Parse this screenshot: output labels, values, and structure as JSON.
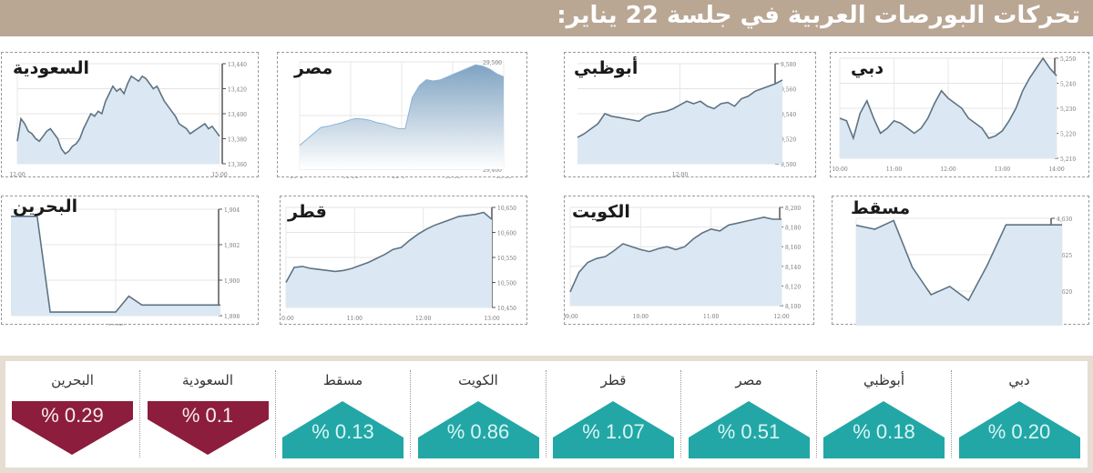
{
  "header": {
    "title": "تحركات البورصات العربية في جلسة 22 يناير:"
  },
  "colors": {
    "header_bg": "#b9a794",
    "up": "#22a7a6",
    "down": "#8c1d3d",
    "line": "#5e7383",
    "fill": "#dbe8f4",
    "frame": "#e6ddd3"
  },
  "summary": [
    {
      "name": "البحرين",
      "value": "% 0.29",
      "direction": "down"
    },
    {
      "name": "السعودية",
      "value": "% 0.1",
      "direction": "down"
    },
    {
      "name": "مسقط",
      "value": "% 0.13",
      "direction": "up"
    },
    {
      "name": "الكويت",
      "value": "% 0.86",
      "direction": "up"
    },
    {
      "name": "قطر",
      "value": "% 1.07",
      "direction": "up"
    },
    {
      "name": "مصر",
      "value": "% 0.51",
      "direction": "up"
    },
    {
      "name": "أبوظبي",
      "value": "% 0.18",
      "direction": "up"
    },
    {
      "name": "دبي",
      "value": "% 0.20",
      "direction": "up"
    }
  ],
  "chart_data": [
    {
      "id": "saudi",
      "title": "السعودية",
      "type": "area",
      "x_ticks": [
        "12:00",
        "15:00"
      ],
      "y_ticks": [
        "13,440",
        "13,420",
        "13,400",
        "13,380",
        "13,360"
      ],
      "ylim": [
        13360,
        13440
      ],
      "values": [
        13378,
        13396,
        13392,
        13386,
        13384,
        13380,
        13378,
        13382,
        13386,
        13388,
        13384,
        13380,
        13372,
        13368,
        13370,
        13374,
        13376,
        13380,
        13388,
        13394,
        13400,
        13398,
        13402,
        13400,
        13410,
        13416,
        13422,
        13418,
        13420,
        13416,
        13424,
        13430,
        13428,
        13426,
        13430,
        13428,
        13424,
        13420,
        13422,
        13416,
        13410,
        13406,
        13402,
        13398,
        13392,
        13390,
        13388,
        13384,
        13386,
        13388,
        13390,
        13392,
        13388,
        13390,
        13386,
        13382
      ]
    },
    {
      "id": "egypt",
      "title": "مصر",
      "type": "area",
      "x_ticks": [
        "21. Jan",
        "10:00",
        "22. Jan",
        "15:00",
        "12:00"
      ],
      "y_ticks": [
        "29,500",
        "29,450",
        "29,400"
      ],
      "ylim": [
        29380,
        29560
      ],
      "values": [
        29420,
        29430,
        29440,
        29450,
        29452,
        29455,
        29458,
        29462,
        29465,
        29464,
        29462,
        29458,
        29456,
        29452,
        29448,
        29448,
        29500,
        29520,
        29530,
        29528,
        29530,
        29535,
        29540,
        29545,
        29550,
        29555,
        29553,
        29548,
        29540,
        29535
      ]
    },
    {
      "id": "abudhabi",
      "title": "أبوظبي",
      "type": "area",
      "x_ticks": [
        "12:00"
      ],
      "y_ticks": [
        "9,580",
        "9,560",
        "9,540",
        "9,520",
        "9,500"
      ],
      "ylim": [
        9500,
        9580
      ],
      "values": [
        9521,
        9524,
        9528,
        9532,
        9540,
        9538,
        9537,
        9536,
        9535,
        9534,
        9538,
        9540,
        9541,
        9542,
        9544,
        9547,
        9550,
        9548,
        9550,
        9546,
        9544,
        9548,
        9549,
        9546,
        9552,
        9554,
        9558,
        9560,
        9562,
        9564,
        9567
      ]
    },
    {
      "id": "dubai",
      "title": "دبي",
      "type": "area",
      "x_ticks": [
        "10:00",
        "11:00",
        "12:00",
        "13:00",
        "14:00"
      ],
      "y_ticks": [
        "5,250",
        "5,240",
        "5,230",
        "5,220",
        "5,210"
      ],
      "ylim": [
        5210,
        5250
      ],
      "values": [
        5226,
        5225,
        5218,
        5228,
        5233,
        5226,
        5220,
        5222,
        5225,
        5224,
        5222,
        5220,
        5222,
        5226,
        5232,
        5237,
        5234,
        5232,
        5230,
        5226,
        5224,
        5222,
        5218,
        5219,
        5221,
        5225,
        5230,
        5237,
        5242,
        5246,
        5250,
        5246,
        5243
      ]
    },
    {
      "id": "bahrain",
      "title": "البحرين",
      "type": "area",
      "x_ticks": [
        "12:00"
      ],
      "y_ticks": [
        "1,904",
        "1,902",
        "1,900",
        "1,898"
      ],
      "ylim": [
        1898,
        1904
      ],
      "values": [
        1903.6,
        1903.6,
        1903.6,
        1898.2,
        1898.2,
        1898.2,
        1898.2,
        1898.2,
        1898.2,
        1899.1,
        1898.6,
        1898.6,
        1898.6,
        1898.6,
        1898.6,
        1898.6,
        1898.6
      ]
    },
    {
      "id": "qatar",
      "title": "قطر",
      "type": "area",
      "x_ticks": [
        "10:00",
        "11:00",
        "12:00",
        "13:00"
      ],
      "y_ticks": [
        "10,650",
        "10,600",
        "10,550",
        "10,500",
        "10,450"
      ],
      "ylim": [
        10450,
        10650
      ],
      "values": [
        10500,
        10530,
        10532,
        10528,
        10526,
        10524,
        10522,
        10524,
        10528,
        10534,
        10540,
        10548,
        10556,
        10566,
        10570,
        10584,
        10596,
        10606,
        10614,
        10620,
        10626,
        10632,
        10634,
        10636,
        10640,
        10626
      ]
    },
    {
      "id": "kuwait",
      "title": "الكويت",
      "type": "area",
      "x_ticks": [
        "09:00",
        "10:00",
        "11:00",
        "12:00"
      ],
      "y_ticks": [
        "8,200",
        "8,180",
        "8,160",
        "8,140",
        "8,120",
        "8,100"
      ],
      "ylim": [
        8100,
        8200
      ],
      "values": [
        8114,
        8134,
        8144,
        8148,
        8150,
        8156,
        8163,
        8160,
        8157,
        8155,
        8158,
        8160,
        8157,
        8160,
        8168,
        8174,
        8178,
        8176,
        8182,
        8184,
        8186,
        8188,
        8190,
        8188,
        8188
      ]
    },
    {
      "id": "muscat",
      "title": "مسقط",
      "type": "line",
      "x_ticks": [
        "12:03",
        "15:01"
      ],
      "y_ticks": [
        "4,630",
        "4,625",
        "4,620",
        "4,615"
      ],
      "ylim": [
        4605,
        4630
      ],
      "values": [
        4628.4,
        4627.5,
        4629.5,
        4618.8,
        4612.5,
        4614.4,
        4611.2,
        4619.2,
        4628.5,
        4628.5,
        4628.5,
        4628.5
      ]
    }
  ]
}
